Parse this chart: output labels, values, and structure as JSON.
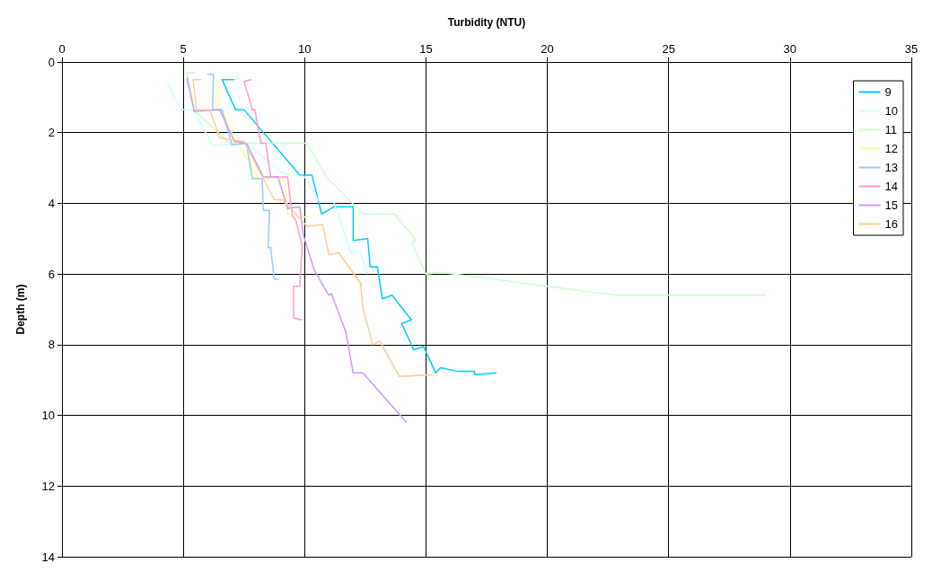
{
  "chart_data": {
    "type": "line",
    "xlabel": "Turbidity (NTU)",
    "ylabel": "Depth (m)",
    "xlim": [
      0,
      35
    ],
    "xticks": [
      0,
      5,
      10,
      15,
      20,
      25,
      30,
      35
    ],
    "ylim": [
      14,
      0
    ],
    "yticks": [
      0,
      2,
      4,
      6,
      8,
      10,
      12,
      14
    ],
    "grid": true,
    "legend": "top right",
    "marker": "none",
    "series": [
      {
        "name": "9",
        "color": "#00ccff",
        "x": [
          7.1,
          6.6,
          7.15,
          7.5,
          9.8,
          10.3,
          10.7,
          11.2,
          12,
          12,
          12.6,
          12.7,
          13,
          13.2,
          13.6,
          14.4,
          14,
          14.5,
          14.9,
          15.4,
          15.6,
          16.3,
          17,
          17,
          17.9
        ],
        "values": [
          0.5,
          0.5,
          1.35,
          1.35,
          3.2,
          3.2,
          4.3,
          4.1,
          4.1,
          5.05,
          5,
          5.8,
          5.8,
          6.7,
          6.6,
          7.3,
          7.4,
          8.15,
          8.05,
          8.8,
          8.65,
          8.75,
          8.75,
          8.85,
          8.8
        ]
      },
      {
        "name": "10",
        "color": "#ccffff",
        "x": [
          4.35,
          4.9,
          5.4,
          6.2,
          7.6,
          9.1,
          10,
          10.6,
          11.2,
          11.9,
          12.3,
          12.6
        ],
        "values": [
          0.6,
          1.35,
          1.35,
          2.35,
          2.3,
          3.15,
          3.25,
          3.95,
          3.95,
          5.4,
          5.4,
          6
        ]
      },
      {
        "name": "11",
        "color": "#ccffcc",
        "x": [
          5.5,
          5.15,
          5.5,
          6.9,
          10.1,
          10.9,
          12.4,
          13.7,
          14.6,
          14.4,
          15,
          15.6,
          22.8,
          25,
          29
        ],
        "values": [
          0.3,
          0.3,
          1.4,
          2.3,
          2.3,
          3.25,
          4.3,
          4.3,
          5.05,
          5.1,
          6,
          5.95,
          6.6,
          6.6,
          6.6
        ]
      },
      {
        "name": "12",
        "color": "#ffff99",
        "x": [
          6.4,
          6.4,
          6.6,
          7.1,
          8.1,
          9.2,
          9.3,
          10.15
        ],
        "values": [
          0.5,
          1.35,
          1.35,
          2.15,
          3.3,
          3.3,
          4.3,
          4.4
        ]
      },
      {
        "name": "13",
        "color": "#99ccff",
        "x": [
          6,
          6.25,
          6.2,
          6.6,
          7,
          7.6,
          7.85,
          8.25,
          8.3,
          8.55,
          8.5,
          8.6,
          8.75,
          8.95
        ],
        "values": [
          0.35,
          0.35,
          1.35,
          1.35,
          2.35,
          2.3,
          3.3,
          3.3,
          4.2,
          4.2,
          5.25,
          5.25,
          6.15,
          6.15
        ]
      },
      {
        "name": "14",
        "color": "#ff99cc",
        "x": [
          7.8,
          7.5,
          7.85,
          7.95,
          8.2,
          8.4,
          8.6,
          9.3,
          9.45,
          9.5,
          9.65,
          9.9,
          9.8,
          9.55,
          9.55,
          9.9
        ],
        "values": [
          0.5,
          0.55,
          1.35,
          1.35,
          2.3,
          2.3,
          3.25,
          3.25,
          4.15,
          4.35,
          4.5,
          5.2,
          6.35,
          6.35,
          7.25,
          7.3
        ]
      },
      {
        "name": "15",
        "color": "#cc99ff",
        "x": [
          5.15,
          5.45,
          6.5,
          7.1,
          7.6,
          8.3,
          8.9,
          9.3,
          9.8,
          9.95,
          10.4,
          11,
          11.1,
          11.7,
          12,
          12.4,
          14.2
        ],
        "values": [
          0.45,
          1.4,
          1.35,
          2.25,
          2.3,
          3.25,
          3.25,
          4.15,
          4.1,
          4.9,
          5.9,
          6.6,
          6.55,
          7.65,
          8.8,
          8.8,
          10.2
        ]
      },
      {
        "name": "16",
        "color": "#ffcc99",
        "x": [
          5.75,
          5.4,
          5.55,
          6.1,
          6.5,
          7.5,
          8.75,
          9.1,
          10.1,
          10.75,
          11,
          11.4,
          12.35,
          12.3,
          12.4,
          12.8,
          13.1,
          13.9,
          15.3
        ],
        "values": [
          0.5,
          0.5,
          1.35,
          1.35,
          2.15,
          2.25,
          3.9,
          3.9,
          4.65,
          4.6,
          5.45,
          5.4,
          6.3,
          6.25,
          6.95,
          8,
          7.9,
          8.9,
          8.85
        ]
      }
    ]
  }
}
